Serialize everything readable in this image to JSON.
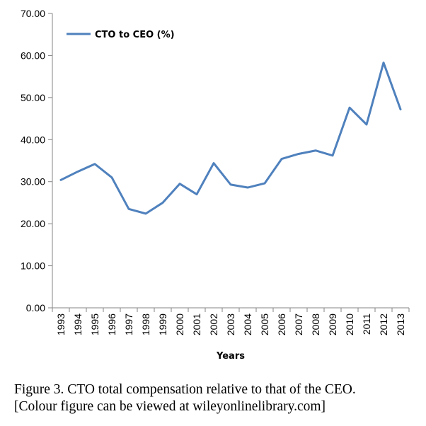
{
  "chart_data": {
    "type": "line",
    "title": "",
    "xlabel": "Years",
    "ylabel": "",
    "categories": [
      "1993",
      "1994",
      "1995",
      "1996",
      "1997",
      "1998",
      "1999",
      "2000",
      "2001",
      "2002",
      "2003",
      "2004",
      "2005",
      "2006",
      "2007",
      "2008",
      "2009",
      "2010",
      "2011",
      "2012",
      "2013"
    ],
    "series": [
      {
        "name": "CTO to CEO (%)",
        "values": [
          30.4,
          32.4,
          34.2,
          31.0,
          23.5,
          22.4,
          25.0,
          29.5,
          27.0,
          34.4,
          29.3,
          28.6,
          29.6,
          35.4,
          36.6,
          37.4,
          36.2,
          47.6,
          43.6,
          58.3,
          47.2
        ],
        "color": "#4f81bd"
      }
    ],
    "ylim": [
      0,
      70
    ],
    "yticks": [
      "0.00",
      "10.00",
      "20.00",
      "30.00",
      "40.00",
      "50.00",
      "60.00",
      "70.00"
    ],
    "ytick_values": [
      0,
      10,
      20,
      30,
      40,
      50,
      60,
      70
    ],
    "grid": false,
    "legend": "top-left inside",
    "x_tick_rotation": -90
  },
  "caption": {
    "line1": "Figure 3. CTO total compensation relative to that of the CEO.",
    "line2": "[Colour figure can be viewed at wileyonlinelibrary.com]"
  }
}
